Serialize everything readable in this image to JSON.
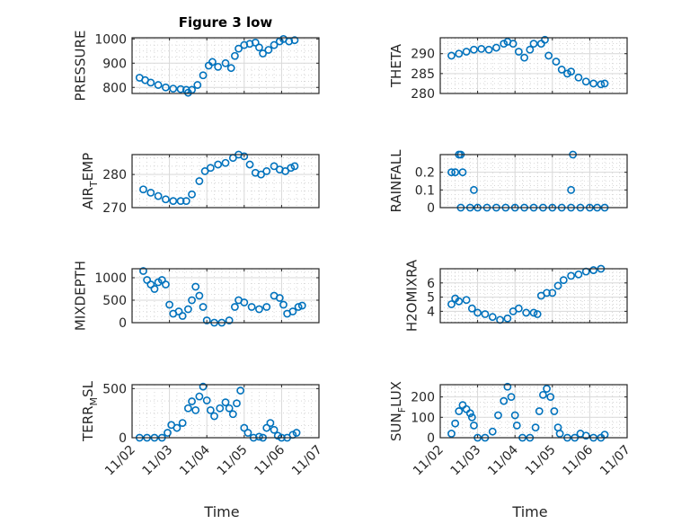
{
  "title": "Figure 3 low",
  "colors": {
    "marker": "#0072BD",
    "axis": "#262626",
    "grid_major": "#d9d9d9",
    "grid_minor": "#bfbfbf"
  },
  "chart_data": [
    {
      "type": "scatter",
      "name": "pressure",
      "ylabel": "PRESSURE",
      "ylabel_sub": null,
      "title": "Figure 3 low",
      "ylim": [
        775,
        1005
      ],
      "yticks": [
        800,
        900,
        1000
      ],
      "xlim": [
        0,
        5
      ],
      "xticks": [
        "11/02",
        "11/03",
        "11/04",
        "11/05",
        "11/06",
        "11/07"
      ],
      "show_xticklabels": false,
      "series": [
        [
          0.2,
          840
        ],
        [
          0.35,
          830
        ],
        [
          0.5,
          820
        ],
        [
          0.7,
          810
        ],
        [
          0.9,
          800
        ],
        [
          1.1,
          795
        ],
        [
          1.3,
          793
        ],
        [
          1.45,
          790
        ],
        [
          1.5,
          778
        ],
        [
          1.6,
          790
        ],
        [
          1.75,
          810
        ],
        [
          1.9,
          850
        ],
        [
          2.05,
          890
        ],
        [
          2.15,
          905
        ],
        [
          2.3,
          885
        ],
        [
          2.5,
          900
        ],
        [
          2.65,
          880
        ],
        [
          2.75,
          930
        ],
        [
          2.85,
          960
        ],
        [
          3.0,
          975
        ],
        [
          3.15,
          980
        ],
        [
          3.3,
          985
        ],
        [
          3.4,
          965
        ],
        [
          3.5,
          940
        ],
        [
          3.65,
          955
        ],
        [
          3.8,
          975
        ],
        [
          3.95,
          990
        ],
        [
          4.05,
          1000
        ],
        [
          4.2,
          990
        ],
        [
          4.35,
          995
        ]
      ]
    },
    {
      "type": "scatter",
      "name": "theta",
      "ylabel": "THETA",
      "ylabel_sub": null,
      "ylim": [
        280,
        294
      ],
      "yticks": [
        280,
        285,
        290
      ],
      "xlim": [
        0,
        5
      ],
      "xticks": [
        "11/02",
        "11/03",
        "11/04",
        "11/05",
        "11/06",
        "11/07"
      ],
      "show_xticklabels": false,
      "series": [
        [
          0.3,
          289.5
        ],
        [
          0.5,
          290
        ],
        [
          0.7,
          290.5
        ],
        [
          0.9,
          291
        ],
        [
          1.1,
          291.2
        ],
        [
          1.3,
          291
        ],
        [
          1.5,
          291.5
        ],
        [
          1.7,
          292.5
        ],
        [
          1.8,
          293
        ],
        [
          1.95,
          292.5
        ],
        [
          2.1,
          290.5
        ],
        [
          2.25,
          289
        ],
        [
          2.4,
          291
        ],
        [
          2.5,
          292.5
        ],
        [
          2.7,
          292.5
        ],
        [
          2.8,
          293.5
        ],
        [
          2.9,
          289.5
        ],
        [
          3.1,
          288
        ],
        [
          3.25,
          286
        ],
        [
          3.4,
          285
        ],
        [
          3.5,
          285.5
        ],
        [
          3.7,
          284
        ],
        [
          3.9,
          283
        ],
        [
          4.1,
          282.5
        ],
        [
          4.3,
          282.3
        ],
        [
          4.4,
          282.5
        ]
      ]
    },
    {
      "type": "scatter",
      "name": "air_temp",
      "ylabel": "AIR",
      "ylabel_sub": "T",
      "ylabel_rest": "EMP",
      "ylim": [
        270,
        286
      ],
      "yticks": [
        270,
        280
      ],
      "xlim": [
        0,
        5
      ],
      "xticks": [
        "11/02",
        "11/03",
        "11/04",
        "11/05",
        "11/06",
        "11/07"
      ],
      "show_xticklabels": false,
      "series": [
        [
          0.3,
          275.5
        ],
        [
          0.5,
          274.5
        ],
        [
          0.7,
          273.5
        ],
        [
          0.9,
          272.5
        ],
        [
          1.1,
          272
        ],
        [
          1.3,
          272
        ],
        [
          1.45,
          272
        ],
        [
          1.6,
          274
        ],
        [
          1.8,
          278
        ],
        [
          1.95,
          281
        ],
        [
          2.1,
          282
        ],
        [
          2.3,
          283
        ],
        [
          2.5,
          283.5
        ],
        [
          2.7,
          285
        ],
        [
          2.85,
          286
        ],
        [
          3.0,
          285.5
        ],
        [
          3.15,
          283
        ],
        [
          3.3,
          280.5
        ],
        [
          3.45,
          280
        ],
        [
          3.6,
          281
        ],
        [
          3.8,
          282.5
        ],
        [
          3.95,
          281.5
        ],
        [
          4.1,
          281
        ],
        [
          4.25,
          282
        ],
        [
          4.35,
          282.5
        ]
      ]
    },
    {
      "type": "scatter",
      "name": "rainfall",
      "ylabel": "RAINFALL",
      "ylabel_sub": null,
      "ylim": [
        0,
        0.3
      ],
      "yticks": [
        0,
        0.1,
        0.2
      ],
      "xlim": [
        0,
        5
      ],
      "xticks": [
        "11/02",
        "11/03",
        "11/04",
        "11/05",
        "11/06",
        "11/07"
      ],
      "show_xticklabels": false,
      "series": [
        [
          0.3,
          0.2
        ],
        [
          0.4,
          0.2
        ],
        [
          0.5,
          0.3
        ],
        [
          0.55,
          0.3
        ],
        [
          0.6,
          0.2
        ],
        [
          0.9,
          0.1
        ],
        [
          3.5,
          0.1
        ],
        [
          3.55,
          0.3
        ],
        [
          0.55,
          0
        ],
        [
          0.8,
          0
        ],
        [
          1.0,
          0
        ],
        [
          1.25,
          0
        ],
        [
          1.5,
          0
        ],
        [
          1.75,
          0
        ],
        [
          2.0,
          0
        ],
        [
          2.25,
          0
        ],
        [
          2.5,
          0
        ],
        [
          2.75,
          0
        ],
        [
          3.0,
          0
        ],
        [
          3.25,
          0
        ],
        [
          3.5,
          0
        ],
        [
          3.75,
          0
        ],
        [
          4.0,
          0
        ],
        [
          4.2,
          0
        ],
        [
          4.4,
          0
        ]
      ]
    },
    {
      "type": "scatter",
      "name": "mixdepth",
      "ylabel": "MIXDEPTH",
      "ylabel_sub": null,
      "ylim": [
        0,
        1200
      ],
      "yticks": [
        0,
        500,
        1000
      ],
      "xlim": [
        0,
        5
      ],
      "xticks": [
        "11/02",
        "11/03",
        "11/04",
        "11/05",
        "11/06",
        "11/07"
      ],
      "show_xticklabels": false,
      "series": [
        [
          0.3,
          1150
        ],
        [
          0.4,
          950
        ],
        [
          0.5,
          850
        ],
        [
          0.6,
          750
        ],
        [
          0.7,
          900
        ],
        [
          0.8,
          950
        ],
        [
          0.9,
          850
        ],
        [
          1.0,
          400
        ],
        [
          1.1,
          200
        ],
        [
          1.25,
          250
        ],
        [
          1.35,
          150
        ],
        [
          1.5,
          300
        ],
        [
          1.6,
          500
        ],
        [
          1.7,
          800
        ],
        [
          1.8,
          600
        ],
        [
          1.9,
          350
        ],
        [
          2.0,
          50
        ],
        [
          2.2,
          0
        ],
        [
          2.4,
          0
        ],
        [
          2.6,
          50
        ],
        [
          2.75,
          350
        ],
        [
          2.85,
          500
        ],
        [
          3.0,
          450
        ],
        [
          3.2,
          350
        ],
        [
          3.4,
          300
        ],
        [
          3.6,
          350
        ],
        [
          3.8,
          600
        ],
        [
          3.95,
          550
        ],
        [
          4.05,
          400
        ],
        [
          4.15,
          200
        ],
        [
          4.3,
          250
        ],
        [
          4.45,
          350
        ],
        [
          4.55,
          380
        ]
      ]
    },
    {
      "type": "scatter",
      "name": "h2omixra",
      "ylabel": "H2OMIXRA",
      "ylabel_sub": null,
      "ylim": [
        3.2,
        7
      ],
      "yticks": [
        4,
        5,
        6
      ],
      "xlim": [
        0,
        5
      ],
      "xticks": [
        "11/02",
        "11/03",
        "11/04",
        "11/05",
        "11/06",
        "11/07"
      ],
      "show_xticklabels": false,
      "series": [
        [
          0.3,
          4.5
        ],
        [
          0.4,
          4.9
        ],
        [
          0.5,
          4.7
        ],
        [
          0.7,
          4.8
        ],
        [
          0.85,
          4.2
        ],
        [
          1.0,
          3.9
        ],
        [
          1.2,
          3.8
        ],
        [
          1.4,
          3.6
        ],
        [
          1.6,
          3.4
        ],
        [
          1.8,
          3.5
        ],
        [
          1.95,
          4
        ],
        [
          2.1,
          4.2
        ],
        [
          2.3,
          3.9
        ],
        [
          2.5,
          3.9
        ],
        [
          2.6,
          3.8
        ],
        [
          2.7,
          5.1
        ],
        [
          2.85,
          5.3
        ],
        [
          3.0,
          5.3
        ],
        [
          3.15,
          5.8
        ],
        [
          3.3,
          6.2
        ],
        [
          3.5,
          6.5
        ],
        [
          3.7,
          6.6
        ],
        [
          3.9,
          6.8
        ],
        [
          4.1,
          6.9
        ],
        [
          4.3,
          7
        ]
      ]
    },
    {
      "type": "scatter",
      "name": "terr_msl",
      "ylabel": "TERR",
      "ylabel_sub": "M",
      "ylabel_rest": "SL",
      "ylim": [
        0,
        540
      ],
      "yticks": [
        0,
        500
      ],
      "xlim": [
        0,
        5
      ],
      "xticks": [
        "11/02",
        "11/03",
        "11/04",
        "11/05",
        "11/06",
        "11/07"
      ],
      "show_xticklabels": true,
      "xlabel": "Time",
      "series": [
        [
          0.2,
          0
        ],
        [
          0.4,
          0
        ],
        [
          0.6,
          0
        ],
        [
          0.8,
          0
        ],
        [
          0.95,
          50
        ],
        [
          1.05,
          130
        ],
        [
          1.2,
          100
        ],
        [
          1.35,
          150
        ],
        [
          1.5,
          300
        ],
        [
          1.6,
          370
        ],
        [
          1.7,
          280
        ],
        [
          1.8,
          420
        ],
        [
          1.9,
          520
        ],
        [
          2.0,
          380
        ],
        [
          2.1,
          280
        ],
        [
          2.2,
          220
        ],
        [
          2.35,
          300
        ],
        [
          2.5,
          360
        ],
        [
          2.6,
          300
        ],
        [
          2.7,
          240
        ],
        [
          2.8,
          350
        ],
        [
          2.9,
          480
        ],
        [
          3.0,
          100
        ],
        [
          3.1,
          50
        ],
        [
          3.25,
          0
        ],
        [
          3.4,
          10
        ],
        [
          3.5,
          0
        ],
        [
          3.6,
          100
        ],
        [
          3.7,
          150
        ],
        [
          3.8,
          80
        ],
        [
          3.9,
          20
        ],
        [
          4.0,
          0
        ],
        [
          4.15,
          0
        ],
        [
          4.3,
          30
        ],
        [
          4.4,
          50
        ]
      ]
    },
    {
      "type": "scatter",
      "name": "sun_flux",
      "ylabel": "SUN",
      "ylabel_sub": "F",
      "ylabel_rest": "LUX",
      "ylim": [
        0,
        260
      ],
      "yticks": [
        0,
        100,
        200
      ],
      "xlim": [
        0,
        5
      ],
      "xticks": [
        "11/02",
        "11/03",
        "11/04",
        "11/05",
        "11/06",
        "11/07"
      ],
      "show_xticklabels": true,
      "xlabel": "Time",
      "series": [
        [
          0.3,
          20
        ],
        [
          0.4,
          70
        ],
        [
          0.5,
          130
        ],
        [
          0.6,
          160
        ],
        [
          0.7,
          140
        ],
        [
          0.8,
          120
        ],
        [
          0.9,
          60
        ],
        [
          0.85,
          100
        ],
        [
          1.0,
          0
        ],
        [
          1.2,
          0
        ],
        [
          1.4,
          30
        ],
        [
          1.55,
          110
        ],
        [
          1.7,
          180
        ],
        [
          1.8,
          250
        ],
        [
          1.9,
          200
        ],
        [
          2.0,
          110
        ],
        [
          2.05,
          60
        ],
        [
          2.2,
          0
        ],
        [
          2.4,
          0
        ],
        [
          2.55,
          50
        ],
        [
          2.65,
          130
        ],
        [
          2.75,
          210
        ],
        [
          2.85,
          240
        ],
        [
          2.95,
          200
        ],
        [
          3.05,
          130
        ],
        [
          3.15,
          50
        ],
        [
          3.2,
          20
        ],
        [
          3.4,
          0
        ],
        [
          3.6,
          0
        ],
        [
          3.75,
          20
        ],
        [
          3.9,
          10
        ],
        [
          4.1,
          0
        ],
        [
          4.3,
          0
        ],
        [
          4.4,
          15
        ]
      ]
    }
  ]
}
